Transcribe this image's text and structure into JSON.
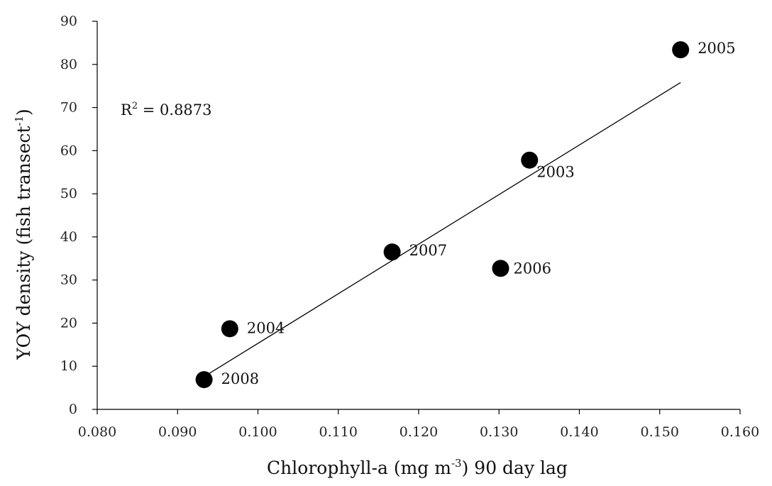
{
  "chart_data": {
    "type": "scatter",
    "xlabel_main": "Chlorophyll-a (mg m",
    "xlabel_sup": "-3",
    "xlabel_tail": ") 90 day lag",
    "ylabel_main": "YOY density (fish transect",
    "ylabel_sup": "-1",
    "ylabel_tail": ")",
    "xlim": [
      0.08,
      0.16
    ],
    "ylim": [
      0,
      90
    ],
    "x_ticks": [
      "0.080",
      "0.090",
      "0.100",
      "0.110",
      "0.120",
      "0.130",
      "0.140",
      "0.150",
      "0.160"
    ],
    "y_ticks": [
      "0",
      "10",
      "20",
      "30",
      "40",
      "50",
      "60",
      "70",
      "80",
      "90"
    ],
    "points": [
      {
        "label": "2003",
        "x": 0.1338,
        "y": 57.8
      },
      {
        "label": "2004",
        "x": 0.0965,
        "y": 18.7
      },
      {
        "label": "2005",
        "x": 0.1526,
        "y": 83.4
      },
      {
        "label": "2006",
        "x": 0.1302,
        "y": 32.7
      },
      {
        "label": "2007",
        "x": 0.1167,
        "y": 36.5
      },
      {
        "label": "2008",
        "x": 0.0933,
        "y": 6.9
      }
    ],
    "trendline": {
      "x": [
        0.0933,
        0.1526
      ],
      "y": [
        7.6,
        75.8
      ]
    },
    "annotation": {
      "r2_main": "R",
      "r2_sup": "2",
      "r2_tail": " = 0.8873"
    },
    "grid": false,
    "legend": "none"
  }
}
